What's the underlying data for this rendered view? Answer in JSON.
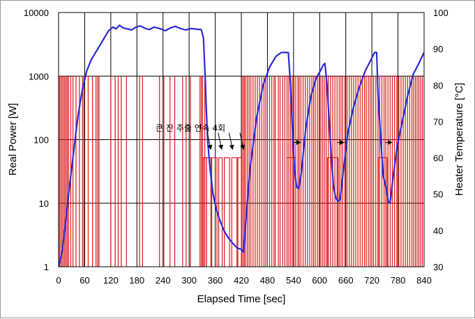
{
  "chart_data": {
    "type": "line",
    "x_label": "Elapsed Time [sec]",
    "y_left_label": "Real Power [W]",
    "y_right_label": "Heater Temperature [°C]",
    "x_range": [
      0,
      840
    ],
    "x_ticks": [
      0,
      60,
      120,
      180,
      240,
      300,
      360,
      420,
      480,
      540,
      600,
      660,
      720,
      780,
      840
    ],
    "y_left_scale": "log",
    "y_left_range": [
      1,
      10000
    ],
    "y_left_ticks": [
      {
        "value": 1,
        "label": "1"
      },
      {
        "value": 10,
        "label": "10"
      },
      {
        "value": 100,
        "label": "100"
      },
      {
        "value": 1000,
        "label": "1000"
      },
      {
        "value": 10000,
        "label": "10000"
      }
    ],
    "y_right_range": [
      30,
      100
    ],
    "y_right_ticks": [
      30,
      40,
      50,
      60,
      70,
      80,
      90,
      100
    ],
    "grid": "vertical lines every 60 sec, horizontal lines at each decade",
    "annotation": {
      "text": "큰 잔 추출 연속 4회",
      "arrow_times_sec": [
        345,
        370,
        395,
        420
      ]
    },
    "recovery_arrow_times_sec": [
      550,
      650,
      760
    ],
    "series": [
      {
        "name": "Heater Temperature",
        "axis": "right",
        "color": "#2a2ad6",
        "points": [
          [
            0,
            30
          ],
          [
            8,
            34
          ],
          [
            15,
            41
          ],
          [
            25,
            52
          ],
          [
            35,
            62
          ],
          [
            45,
            72
          ],
          [
            55,
            79
          ],
          [
            65,
            84
          ],
          [
            75,
            87
          ],
          [
            85,
            89
          ],
          [
            95,
            91
          ],
          [
            105,
            93
          ],
          [
            115,
            95
          ],
          [
            125,
            96
          ],
          [
            132,
            95.5
          ],
          [
            140,
            96.5
          ],
          [
            148,
            95.8
          ],
          [
            158,
            95.5
          ],
          [
            168,
            95.2
          ],
          [
            178,
            96
          ],
          [
            188,
            96.3
          ],
          [
            198,
            95.7
          ],
          [
            208,
            95.3
          ],
          [
            220,
            96
          ],
          [
            232,
            95.6
          ],
          [
            245,
            95
          ],
          [
            258,
            95.8
          ],
          [
            268,
            96.2
          ],
          [
            280,
            95.6
          ],
          [
            292,
            95.2
          ],
          [
            305,
            95.6
          ],
          [
            318,
            95.4
          ],
          [
            328,
            95.3
          ],
          [
            333,
            93
          ],
          [
            337,
            82
          ],
          [
            340,
            72
          ],
          [
            343,
            64
          ],
          [
            348,
            57
          ],
          [
            355,
            50
          ],
          [
            362,
            46
          ],
          [
            370,
            43
          ],
          [
            380,
            40
          ],
          [
            390,
            38
          ],
          [
            400,
            36.5
          ],
          [
            410,
            35.2
          ],
          [
            420,
            34.8
          ],
          [
            425,
            34
          ],
          [
            430,
            42
          ],
          [
            440,
            57
          ],
          [
            455,
            71
          ],
          [
            470,
            80
          ],
          [
            485,
            85
          ],
          [
            500,
            88
          ],
          [
            512,
            89
          ],
          [
            522,
            89
          ],
          [
            528,
            89
          ],
          [
            533,
            80
          ],
          [
            537,
            69
          ],
          [
            542,
            57
          ],
          [
            547,
            52
          ],
          [
            552,
            51.5
          ],
          [
            558,
            56
          ],
          [
            568,
            68
          ],
          [
            580,
            77
          ],
          [
            592,
            82
          ],
          [
            602,
            84
          ],
          [
            608,
            85.5
          ],
          [
            612,
            86
          ],
          [
            617,
            80
          ],
          [
            622,
            70
          ],
          [
            627,
            60
          ],
          [
            632,
            52
          ],
          [
            637,
            49
          ],
          [
            642,
            48
          ],
          [
            647,
            48.5
          ],
          [
            655,
            57
          ],
          [
            665,
            67
          ],
          [
            678,
            74
          ],
          [
            690,
            79
          ],
          [
            705,
            84
          ],
          [
            718,
            87
          ],
          [
            726,
            89
          ],
          [
            731,
            89
          ],
          [
            734,
            78
          ],
          [
            740,
            66
          ],
          [
            746,
            55
          ],
          [
            752,
            52
          ],
          [
            758,
            48
          ],
          [
            762,
            47.5
          ],
          [
            768,
            54
          ],
          [
            778,
            63
          ],
          [
            790,
            70
          ],
          [
            802,
            77
          ],
          [
            815,
            83
          ],
          [
            828,
            86
          ],
          [
            840,
            89
          ]
        ]
      },
      {
        "name": "Real Power",
        "axis": "left",
        "color": "#d81b1b",
        "levels_W": {
          "full": 1000,
          "partial": 52,
          "off": 1
        },
        "full_power_pulse_times_sec": [
          2,
          5,
          8,
          11,
          14,
          17,
          20,
          23,
          28,
          33,
          40,
          48,
          55,
          58,
          68,
          78,
          86,
          90,
          93,
          120,
          130,
          137,
          144,
          156,
          186,
          193,
          232,
          242,
          256,
          267,
          285,
          293,
          303,
          325,
          328,
          331,
          336,
          421,
          424,
          427,
          430,
          434,
          438,
          442,
          447,
          452,
          457,
          462,
          467,
          472,
          476,
          480,
          485,
          490,
          495,
          498,
          505,
          509,
          515,
          520,
          525,
          529,
          533,
          537,
          541,
          545,
          550,
          553,
          557,
          562,
          567,
          572,
          577,
          582,
          586,
          590,
          595,
          599,
          603,
          607,
          611,
          615,
          620,
          625,
          630,
          635,
          640,
          645,
          649,
          653,
          658,
          663,
          668,
          673,
          678,
          683,
          688,
          693,
          698,
          703,
          707,
          712,
          716,
          720,
          724,
          729,
          734,
          738,
          743,
          748,
          752,
          757,
          762,
          767,
          772,
          777,
          782,
          787,
          792,
          797,
          802,
          807,
          812,
          816,
          820,
          824,
          828,
          832,
          836
        ],
        "partial_segments_sec": [
          [
            333,
            340
          ],
          [
            340,
            350
          ],
          [
            352,
            364
          ],
          [
            368,
            376
          ],
          [
            381,
            393
          ],
          [
            398,
            410
          ],
          [
            412,
            420
          ],
          [
            525,
            545
          ],
          [
            618,
            642
          ],
          [
            735,
            755
          ]
        ]
      }
    ]
  }
}
